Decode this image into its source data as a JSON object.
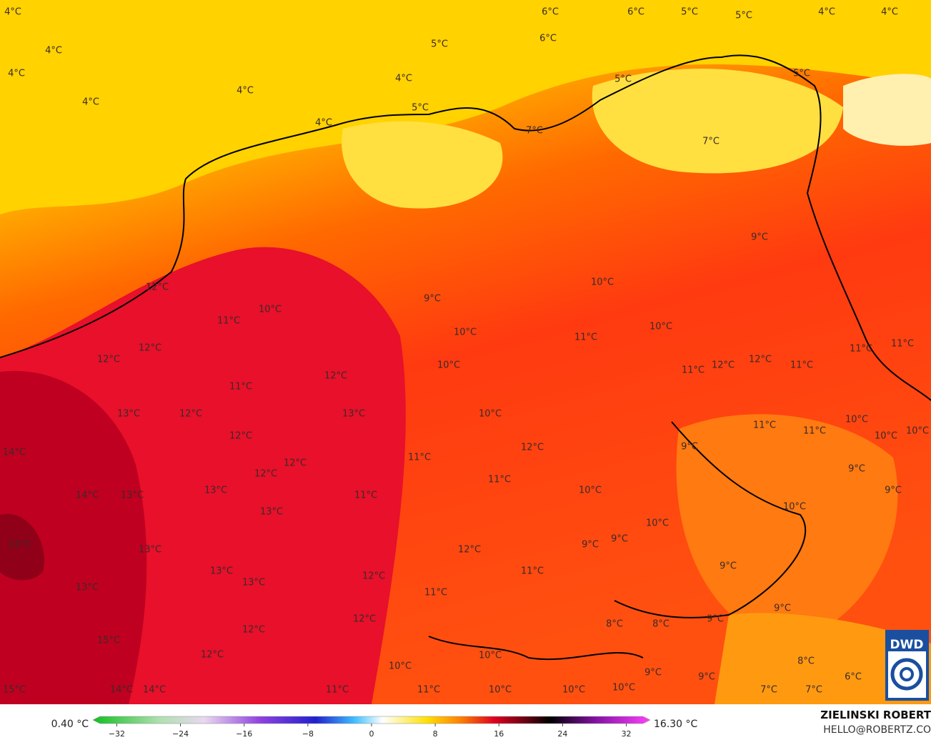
{
  "map": {
    "labels": [
      "4°C",
      "4°C",
      "4°C",
      "4°C",
      "4°C",
      "6°C",
      "6°C",
      "5°C",
      "5°C",
      "4°C",
      "4°C",
      "5°C",
      "6°C",
      "4°C",
      "5°C",
      "5°C",
      "5°C",
      "4°C",
      "7°C",
      "7°C",
      "9°C",
      "12°C",
      "10°C",
      "9°C",
      "10°C",
      "11°C",
      "10°C",
      "11°C",
      "10°C",
      "12°C",
      "12°C",
      "11°C",
      "11°C",
      "10°C",
      "12°C",
      "11°C",
      "12°C",
      "12°C",
      "11°C",
      "11°C",
      "13°C",
      "12°C",
      "13°C",
      "10°C",
      "10°C",
      "11°C",
      "11°C",
      "10°C",
      "10°C",
      "14°C",
      "12°C",
      "11°C",
      "12°C",
      "9°C",
      "12°C",
      "12°C",
      "11°C",
      "9°C",
      "14°C",
      "13°C",
      "13°C",
      "11°C",
      "10°C",
      "9°C",
      "13°C",
      "10°C",
      "10°C",
      "16°C",
      "13°C",
      "12°C",
      "9°C",
      "9°C",
      "9°C",
      "13°C",
      "11°C",
      "12°C",
      "13°C",
      "13°C",
      "11°C",
      "9°C",
      "9°C",
      "12°C",
      "12°C",
      "8°C",
      "8°C",
      "15°C",
      "12°C",
      "10°C",
      "10°C",
      "9°C",
      "9°C",
      "8°C",
      "6°C",
      "11°C",
      "15°C",
      "14°C",
      "14°C",
      "11°C",
      "10°C",
      "10°C",
      "10°C",
      "7°C",
      "7°C"
    ],
    "colorbar": {
      "min_label": "0.40 °C",
      "max_label": "16.30 °C",
      "lim": [
        -35,
        35
      ],
      "ticks": [
        {
          "value": -32,
          "label": "−32"
        },
        {
          "value": -24,
          "label": "−24"
        },
        {
          "value": -16,
          "label": "−16"
        },
        {
          "value": -8,
          "label": "−8"
        },
        0,
        8,
        16,
        24,
        32
      ]
    },
    "credit": {
      "name": "ZIELINSKI ROBERT",
      "contact": "HELLO@ROBERTZ.CO"
    },
    "logo": "DWD"
  }
}
